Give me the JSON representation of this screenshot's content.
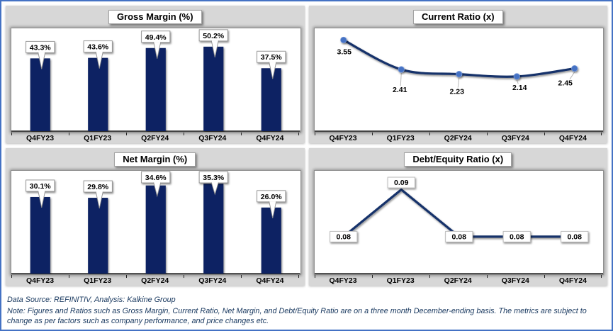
{
  "colors": {
    "frame_border_blue": "#4472C4",
    "panel_gray": "#D7D7D7",
    "bar_navy": "#0E2363",
    "line_navy": "#14306B",
    "marker_blue": "#4472C4",
    "label_border_gray": "#8F8F8F",
    "leader_gray": "#B8B8B8",
    "footer_navy": "#17375E"
  },
  "chart_data": [
    {
      "type": "bar",
      "title": "Gross Margin (%)",
      "categories": [
        "Q4FY23",
        "Q1FY23",
        "Q2FY24",
        "Q3FY24",
        "Q4FY24"
      ],
      "values": [
        43.3,
        43.6,
        49.4,
        50.2,
        37.5
      ],
      "labels": [
        "43.3%",
        "43.6%",
        "49.4%",
        "50.2%",
        "37.5%"
      ],
      "ylim": [
        0,
        61
      ],
      "xlabel": "",
      "ylabel": "",
      "grid": false,
      "legend": "none",
      "label_style": "callout"
    },
    {
      "type": "line",
      "title": "Current Ratio (x)",
      "categories": [
        "Q4FY23",
        "Q1FY23",
        "Q2FY24",
        "Q3FY24",
        "Q4FY24"
      ],
      "values": [
        3.55,
        2.41,
        2.23,
        2.14,
        2.45
      ],
      "labels": [
        "3.55",
        "2.41",
        "2.23",
        "2.14",
        "2.45"
      ],
      "ylim": [
        0,
        4
      ],
      "xlabel": "",
      "ylabel": "",
      "grid": false,
      "legend": "none",
      "smooth": true,
      "markers": true,
      "label_style": "plain"
    },
    {
      "type": "bar",
      "title": "Net Margin (%)",
      "categories": [
        "Q4FY23",
        "Q1FY23",
        "Q2FY24",
        "Q3FY24",
        "Q4FY24"
      ],
      "values": [
        30.1,
        29.8,
        34.6,
        35.3,
        26.0
      ],
      "labels": [
        "30.1%",
        "29.8%",
        "34.6%",
        "35.3%",
        "26.0%"
      ],
      "ylim": [
        0,
        40.3
      ],
      "xlabel": "",
      "ylabel": "",
      "grid": false,
      "legend": "none",
      "label_style": "callout"
    },
    {
      "type": "line",
      "title": "Debt/Equity Ratio (x)",
      "categories": [
        "Q4FY23",
        "Q1FY23",
        "Q2FY24",
        "Q3FY24",
        "Q4FY24"
      ],
      "values": [
        0.08,
        0.09,
        0.08,
        0.08,
        0.08
      ],
      "labels": [
        "0.08",
        "0.09",
        "0.08",
        "0.08",
        "0.08"
      ],
      "ylim": [
        0.072,
        0.094
      ],
      "xlabel": "",
      "ylabel": "",
      "grid": false,
      "legend": "none",
      "smooth": false,
      "markers": false,
      "label_style": "box"
    }
  ],
  "footer": {
    "source_line": "Data Source: REFINITIV, Analysis: Kalkine Group",
    "note_line": "Note: Figures and Ratios such as Gross Margin, Current Ratio, Net Margin, and Debt/Equity Ratio are on a three month December-ending basis. The metrics are subject to change as per factors such as company performance, and price changes etc."
  }
}
